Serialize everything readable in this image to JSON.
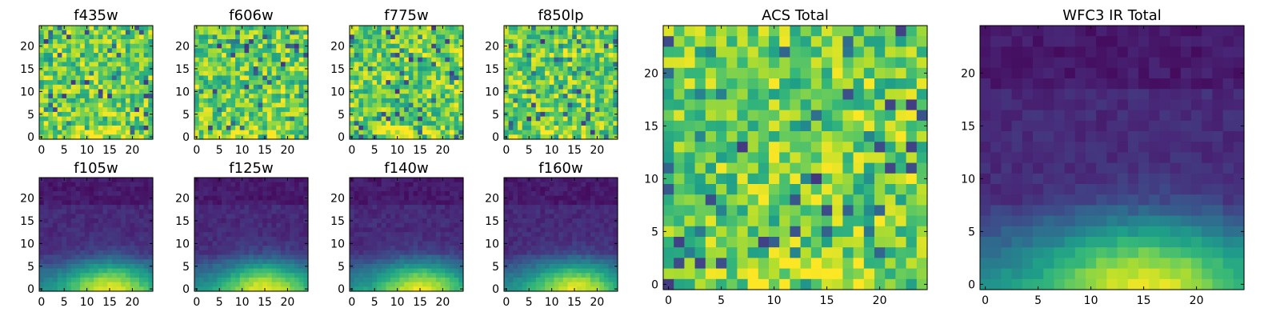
{
  "chart_data": [
    {
      "type": "heatmap",
      "title": "f435w",
      "x_ticks": [
        "0",
        "5",
        "10",
        "15",
        "20"
      ],
      "y_ticks": [
        "0",
        "5",
        "10",
        "15",
        "20"
      ],
      "xlim": [
        -0.5,
        24.5
      ],
      "ylim": [
        -0.5,
        24.5
      ],
      "grid": false,
      "colormap": "viridis",
      "pattern": "noise"
    },
    {
      "type": "heatmap",
      "title": "f606w",
      "x_ticks": [
        "0",
        "5",
        "10",
        "15",
        "20"
      ],
      "y_ticks": [
        "0",
        "5",
        "10",
        "15",
        "20"
      ],
      "xlim": [
        -0.5,
        24.5
      ],
      "ylim": [
        -0.5,
        24.5
      ],
      "grid": false,
      "colormap": "viridis",
      "pattern": "noise"
    },
    {
      "type": "heatmap",
      "title": "f775w",
      "x_ticks": [
        "0",
        "5",
        "10",
        "15",
        "20"
      ],
      "y_ticks": [
        "0",
        "5",
        "10",
        "15",
        "20"
      ],
      "xlim": [
        -0.5,
        24.5
      ],
      "ylim": [
        -0.5,
        24.5
      ],
      "grid": false,
      "colormap": "viridis",
      "pattern": "noise"
    },
    {
      "type": "heatmap",
      "title": "f850lp",
      "x_ticks": [
        "0",
        "5",
        "10",
        "15",
        "20"
      ],
      "y_ticks": [
        "0",
        "5",
        "10",
        "15",
        "20"
      ],
      "xlim": [
        -0.5,
        24.5
      ],
      "ylim": [
        -0.5,
        24.5
      ],
      "grid": false,
      "colormap": "viridis",
      "pattern": "noise"
    },
    {
      "type": "heatmap",
      "title": "ACS Total",
      "x_ticks": [
        "0",
        "5",
        "10",
        "15",
        "20"
      ],
      "y_ticks": [
        "0",
        "5",
        "10",
        "15",
        "20"
      ],
      "xlim": [
        -0.5,
        24.5
      ],
      "ylim": [
        -0.5,
        24.5
      ],
      "grid": false,
      "colormap": "viridis",
      "pattern": "noise"
    },
    {
      "type": "heatmap",
      "title": "f105w",
      "x_ticks": [
        "0",
        "5",
        "10",
        "15",
        "20"
      ],
      "y_ticks": [
        "0",
        "5",
        "10",
        "15",
        "20"
      ],
      "xlim": [
        -0.5,
        24.5
      ],
      "ylim": [
        -0.5,
        24.5
      ],
      "grid": false,
      "colormap": "viridis",
      "pattern": "glow"
    },
    {
      "type": "heatmap",
      "title": "f125w",
      "x_ticks": [
        "0",
        "5",
        "10",
        "15",
        "20"
      ],
      "y_ticks": [
        "0",
        "5",
        "10",
        "15",
        "20"
      ],
      "xlim": [
        -0.5,
        24.5
      ],
      "ylim": [
        -0.5,
        24.5
      ],
      "grid": false,
      "colormap": "viridis",
      "pattern": "glow"
    },
    {
      "type": "heatmap",
      "title": "f140w",
      "x_ticks": [
        "0",
        "5",
        "10",
        "15",
        "20"
      ],
      "y_ticks": [
        "0",
        "5",
        "10",
        "15",
        "20"
      ],
      "xlim": [
        -0.5,
        24.5
      ],
      "ylim": [
        -0.5,
        24.5
      ],
      "grid": false,
      "colormap": "viridis",
      "pattern": "glow"
    },
    {
      "type": "heatmap",
      "title": "f160w",
      "x_ticks": [
        "0",
        "5",
        "10",
        "15",
        "20"
      ],
      "y_ticks": [
        "0",
        "5",
        "10",
        "15",
        "20"
      ],
      "xlim": [
        -0.5,
        24.5
      ],
      "ylim": [
        -0.5,
        24.5
      ],
      "grid": false,
      "colormap": "viridis",
      "pattern": "glow"
    },
    {
      "type": "heatmap",
      "title": "WFC3 IR Total",
      "x_ticks": [
        "0",
        "5",
        "10",
        "15",
        "20"
      ],
      "y_ticks": [
        "0",
        "5",
        "10",
        "15",
        "20"
      ],
      "xlim": [
        -0.5,
        24.5
      ],
      "ylim": [
        -0.5,
        24.5
      ],
      "grid": false,
      "colormap": "viridis",
      "pattern": "glow"
    }
  ]
}
